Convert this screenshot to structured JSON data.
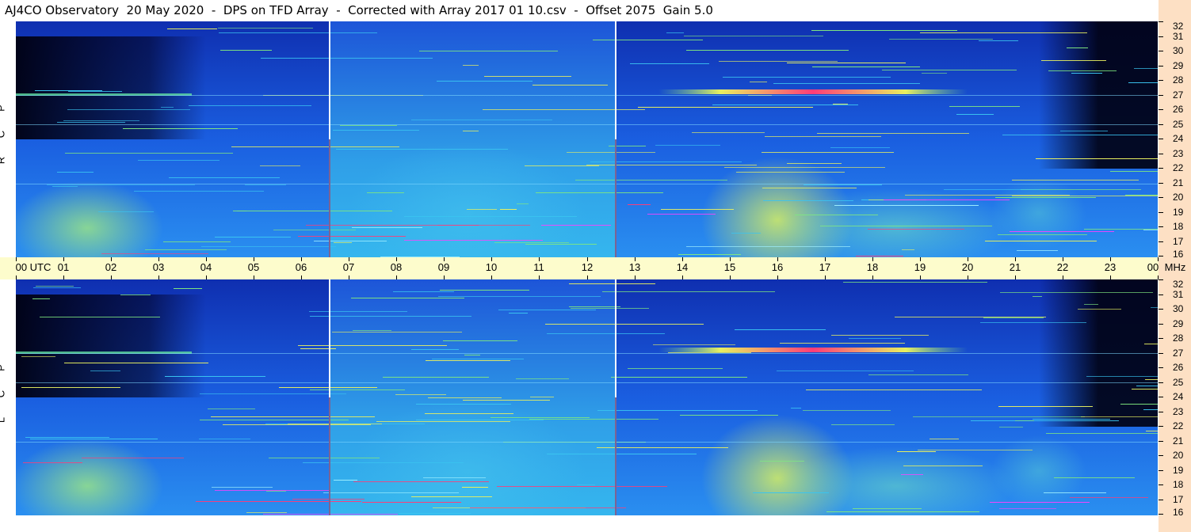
{
  "header": {
    "title": "AJ4CO Observatory  20 May 2020  -  DPS on TFD Array  -  Corrected with Array 2017 01 10.csv  -  Offset 2075  Gain 5.0"
  },
  "panels": {
    "top_label": [
      "R",
      "C",
      "P"
    ],
    "bottom_label": [
      "L",
      "C",
      "P"
    ]
  },
  "chart_data": {
    "type": "heatmap",
    "title": "AJ4CO Observatory  20 May 2020  -  DPS on TFD Array  -  Corrected with Array 2017 01 10.csv  -  Offset 2075  Gain 5.0",
    "x_axis": {
      "ticks": [
        "00 UTC",
        "01",
        "02",
        "03",
        "04",
        "05",
        "06",
        "07",
        "08",
        "09",
        "10",
        "11",
        "12",
        "13",
        "14",
        "15",
        "16",
        "17",
        "18",
        "19",
        "20",
        "21",
        "22",
        "23",
        "00"
      ],
      "range_hours": [
        0,
        24
      ]
    },
    "y_axis": {
      "ticks": [
        "32",
        "31",
        "30",
        "29",
        "28",
        "27",
        "26",
        "25",
        "24",
        "23",
        "22",
        "21",
        "20",
        "19",
        "18",
        "17",
        "16"
      ],
      "last_unit_label": "MHz",
      "range_mhz": [
        16,
        32
      ]
    },
    "panels": [
      {
        "name": "R C P"
      },
      {
        "name": "L C P"
      }
    ],
    "colormap": [
      "#000000",
      "#0a1a6e",
      "#1a3fd0",
      "#2a7ff0",
      "#3ac4f0",
      "#80e880",
      "#e8f060",
      "#ff3c78",
      "#ff40ff"
    ],
    "gaps_utc_hours": [
      6.6,
      12.6
    ]
  }
}
